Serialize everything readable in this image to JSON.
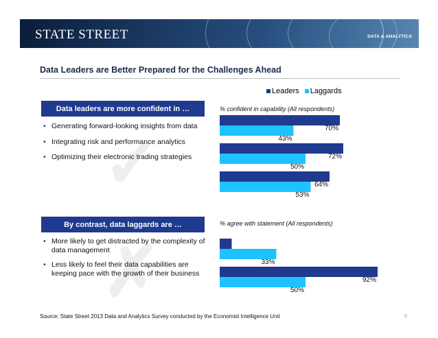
{
  "header": {
    "logo": "STATE STREET",
    "section": "DATA & ANALYTICS"
  },
  "title": "Data Leaders are Better Prepared for the Challenges Ahead",
  "legend": {
    "leaders": "Leaders",
    "laggards": "Laggards"
  },
  "colors": {
    "leaders": "#1f3a8f",
    "laggards": "#1ec2ff",
    "header_blue": "#1f3a8f"
  },
  "panel1": {
    "header": "Data leaders are more confident in …",
    "bullets": [
      "Generating forward-looking insights from data",
      "Integrating risk and performance analytics",
      "Optimizing their electronic trading strategies"
    ],
    "chart_label": "% confident in capability (All respondents)"
  },
  "panel2": {
    "header": "By contrast, data laggards are …",
    "bullets": [
      "More likely to get distracted by the complexity of data management",
      "Less likely to feel their data capabilities are keeping pace with the growth of their business"
    ],
    "chart_label": "% agree with statement  (All respondents)"
  },
  "chart_data": [
    {
      "type": "bar",
      "orientation": "horizontal",
      "categories": [
        "Generating forward-looking insights from data",
        "Integrating risk and performance analytics",
        "Optimizing their electronic trading strategies"
      ],
      "series": [
        {
          "name": "Leaders",
          "values": [
            70,
            72,
            64
          ]
        },
        {
          "name": "Laggards",
          "values": [
            43,
            50,
            53
          ]
        }
      ],
      "unit": "%",
      "title": "% confident in capability (All respondents)"
    },
    {
      "type": "bar",
      "orientation": "horizontal",
      "categories": [
        "More likely to get distracted by the complexity of data management",
        "Less likely to feel their data capabilities are keeping pace with the growth of their business"
      ],
      "series": [
        {
          "name": "Leaders",
          "values": [
            7,
            92
          ]
        },
        {
          "name": "Laggards",
          "values": [
            33,
            50
          ]
        }
      ],
      "unit": "%",
      "title": "% agree with statement  (All respondents)"
    }
  ],
  "footer": {
    "source": "Source: State Street 2013 Data and Analytics Survey conducted by the Economist Intelligence Unit",
    "page": "8"
  }
}
